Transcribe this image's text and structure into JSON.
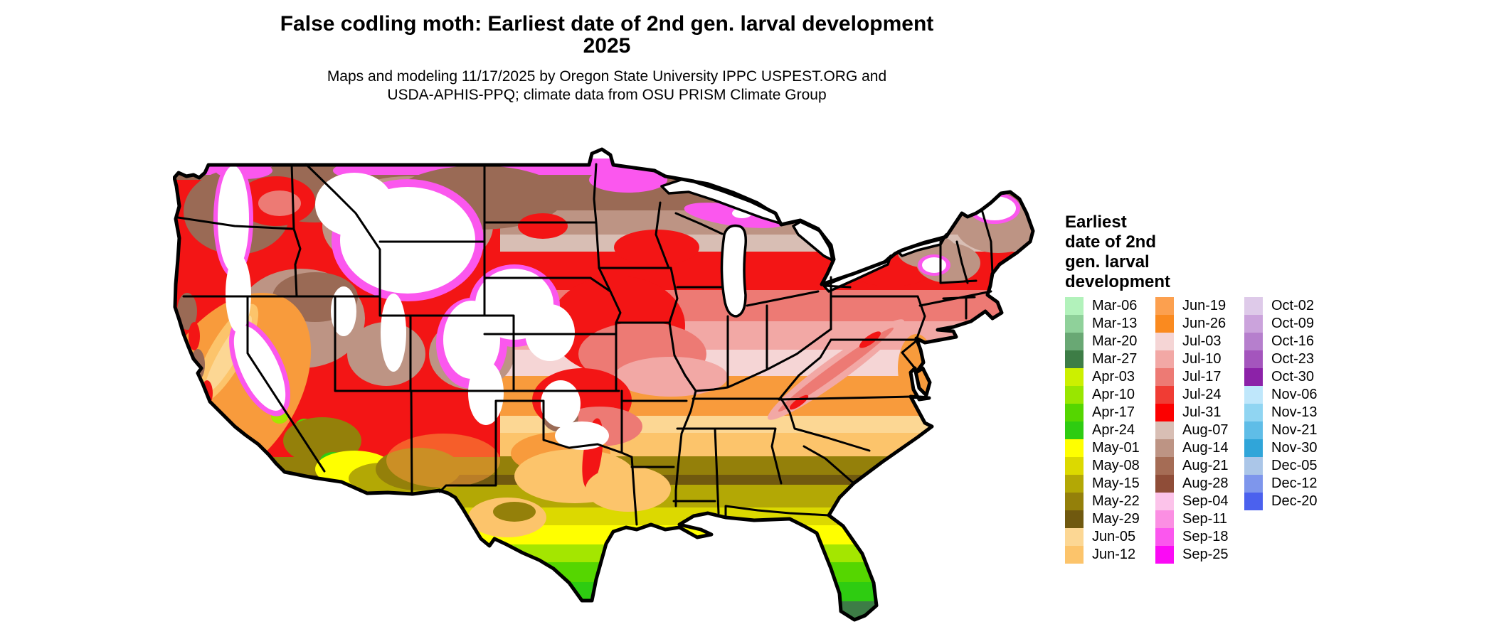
{
  "title": {
    "line1": "False codling moth: Earliest date of 2nd gen. larval development",
    "line2": "2025"
  },
  "subtitle": {
    "line1": "Maps and modeling 11/17/2025 by Oregon State University IPPC USPEST.ORG and",
    "line2": "USDA-APHIS-PPQ; climate data from OSU PRISM Climate Group"
  },
  "legend": {
    "title_lines": "Earliest\ndate of 2nd\ngen. larval\ndevelopment",
    "columns": [
      [
        {
          "label": "Mar-06",
          "color": "#b2f2bb"
        },
        {
          "label": "Mar-13",
          "color": "#8fd19a"
        },
        {
          "label": "Mar-20",
          "color": "#69a874"
        },
        {
          "label": "Mar-27",
          "color": "#3d7d46"
        },
        {
          "label": "Apr-03",
          "color": "#ccf000"
        },
        {
          "label": "Apr-10",
          "color": "#99e600"
        },
        {
          "label": "Apr-17",
          "color": "#55d600"
        },
        {
          "label": "Apr-24",
          "color": "#2ecc11"
        },
        {
          "label": "May-01",
          "color": "#ffff00"
        },
        {
          "label": "May-08",
          "color": "#dcd900"
        },
        {
          "label": "May-15",
          "color": "#b3a805"
        },
        {
          "label": "May-22",
          "color": "#94800a"
        },
        {
          "label": "May-29",
          "color": "#70590f"
        },
        {
          "label": "Jun-05",
          "color": "#fcd794"
        },
        {
          "label": "Jun-12",
          "color": "#fcc46b"
        }
      ],
      [
        {
          "label": "Jun-19",
          "color": "#fca04f"
        },
        {
          "label": "Jun-26",
          "color": "#fa8a1f"
        },
        {
          "label": "Jul-03",
          "color": "#f5d5d5"
        },
        {
          "label": "Jul-10",
          "color": "#f2a8a5"
        },
        {
          "label": "Jul-17",
          "color": "#ed7a74"
        },
        {
          "label": "Jul-24",
          "color": "#f03c34"
        },
        {
          "label": "Jul-31",
          "color": "#fc0000"
        },
        {
          "label": "Aug-07",
          "color": "#d8beb4"
        },
        {
          "label": "Aug-14",
          "color": "#bd9484"
        },
        {
          "label": "Aug-21",
          "color": "#a56c55"
        },
        {
          "label": "Aug-28",
          "color": "#8f4d38"
        },
        {
          "label": "Sep-04",
          "color": "#fcc3ea"
        },
        {
          "label": "Sep-11",
          "color": "#fb8fe3"
        },
        {
          "label": "Sep-18",
          "color": "#fb57ee"
        },
        {
          "label": "Sep-25",
          "color": "#fb0af5"
        }
      ],
      [
        {
          "label": "Oct-02",
          "color": "#decae9"
        },
        {
          "label": "Oct-09",
          "color": "#cba3dc"
        },
        {
          "label": "Oct-16",
          "color": "#b67fcd"
        },
        {
          "label": "Oct-23",
          "color": "#a455bd"
        },
        {
          "label": "Oct-30",
          "color": "#8c22a8"
        },
        {
          "label": "Nov-06",
          "color": "#bfe7fb"
        },
        {
          "label": "Nov-13",
          "color": "#90d5f2"
        },
        {
          "label": "Nov-21",
          "color": "#5fbde7"
        },
        {
          "label": "Nov-30",
          "color": "#30a5d9"
        },
        {
          "label": "Dec-05",
          "color": "#abc6e8"
        },
        {
          "label": "Dec-12",
          "color": "#7e96ec"
        },
        {
          "label": "Dec-20",
          "color": "#4b61ee"
        }
      ]
    ]
  },
  "chart_data": {
    "type": "heatmap",
    "subtype": "choropleth-map-of-conus",
    "title": "False codling moth: Earliest date of 2nd gen. larval development 2025",
    "legend_title": "Earliest date of 2nd gen. larval development",
    "scale_categories": [
      "Mar-06",
      "Mar-13",
      "Mar-20",
      "Mar-27",
      "Apr-03",
      "Apr-10",
      "Apr-17",
      "Apr-24",
      "May-01",
      "May-08",
      "May-15",
      "May-22",
      "May-29",
      "Jun-05",
      "Jun-12",
      "Jun-19",
      "Jun-26",
      "Jul-03",
      "Jul-10",
      "Jul-17",
      "Jul-24",
      "Jul-31",
      "Aug-07",
      "Aug-14",
      "Aug-21",
      "Aug-28",
      "Sep-04",
      "Sep-11",
      "Sep-18",
      "Sep-25",
      "Oct-02",
      "Oct-09",
      "Oct-16",
      "Oct-23",
      "Oct-30",
      "Nov-06",
      "Nov-13",
      "Nov-21",
      "Nov-30",
      "Dec-05",
      "Dec-12",
      "Dec-20"
    ],
    "scale_colors": [
      "#b2f2bb",
      "#8fd19a",
      "#69a874",
      "#3d7d46",
      "#ccf000",
      "#99e600",
      "#55d600",
      "#2ecc11",
      "#ffff00",
      "#dcd900",
      "#b3a805",
      "#94800a",
      "#70590f",
      "#fcd794",
      "#fcc46b",
      "#fca04f",
      "#fa8a1f",
      "#f5d5d5",
      "#f2a8a5",
      "#ed7a74",
      "#f03c34",
      "#fc0000",
      "#d8beb4",
      "#bd9484",
      "#a56c55",
      "#8f4d38",
      "#fcc3ea",
      "#fb8fe3",
      "#fb57ee",
      "#fb0af5",
      "#decae9",
      "#cba3dc",
      "#b67fcd",
      "#a455bd",
      "#8c22a8",
      "#bfe7fb",
      "#90d5f2",
      "#5fbde7",
      "#30a5d9",
      "#abc6e8",
      "#7e96ec",
      "#4b61ee"
    ],
    "legend_position": "right",
    "region_summary": {
      "northern_tier": "Aug-07 to Sep-25 (tan/brown with magenta fringe), white = later/no development in mountains",
      "upper_midwest_northeast": "Jul-24 to Jul-31 (red)",
      "central_corn_belt": "Jul-03 to Jul-17 (pink/salmon)",
      "mid_south_plains": "Jun-05 to Jun-26 (orange/peach)",
      "gulf_south": "May-08 to May-29 (olive/yellow)",
      "south_texas_florida": "Mar-20 to May-01 (green/yellow, dark green at tips)"
    }
  }
}
